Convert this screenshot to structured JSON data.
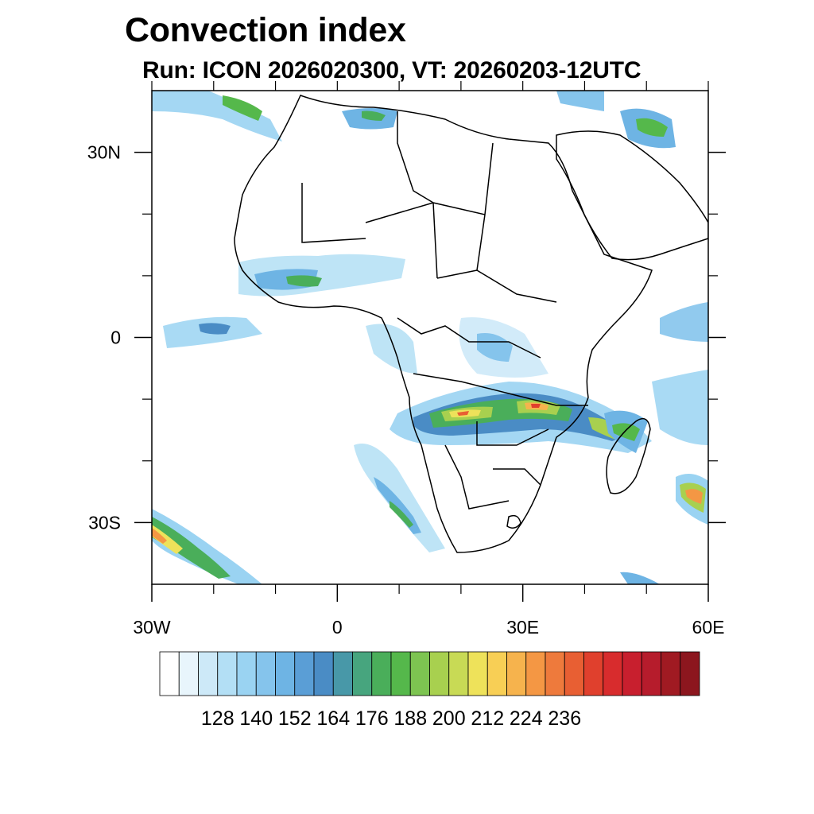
{
  "title": "Convection index",
  "subtitle": "Run: ICON 2026020300,  VT: 20260203-12UTC",
  "map": {
    "lon_range": [
      -30,
      60
    ],
    "lat_range": [
      -40,
      40
    ],
    "lon_ticks": [
      {
        "value": -30,
        "label": "30W"
      },
      {
        "value": 0,
        "label": "0"
      },
      {
        "value": 30,
        "label": "30E"
      },
      {
        "value": 60,
        "label": "60E"
      }
    ],
    "lat_ticks": [
      {
        "value": 30,
        "label": "30N"
      },
      {
        "value": 0,
        "label": "0"
      },
      {
        "value": -30,
        "label": "30S"
      }
    ],
    "minor_lon_ticks": [
      -20,
      -10,
      10,
      20,
      40,
      50
    ],
    "minor_lat_ticks": [
      20,
      10,
      -10,
      -20
    ]
  },
  "colorbar": {
    "colors": [
      "#ffffff",
      "#e8f5fc",
      "#cde9f8",
      "#b3dff5",
      "#9ad3f2",
      "#85c4ec",
      "#6eb4e4",
      "#5a9ed6",
      "#4a8cc5",
      "#4898a8",
      "#47a57e",
      "#4aae5a",
      "#55b84b",
      "#7dc451",
      "#a8d04f",
      "#c8da55",
      "#eee25a",
      "#f8cf55",
      "#f6b34d",
      "#f49744",
      "#ee7a3c",
      "#e85f33",
      "#e0402d",
      "#d82c2d",
      "#c81f2e",
      "#b61c2c",
      "#a01a22",
      "#8c161e"
    ],
    "labels": [
      "128",
      "140",
      "152",
      "164",
      "176",
      "188",
      "200",
      "212",
      "224",
      "236"
    ]
  }
}
